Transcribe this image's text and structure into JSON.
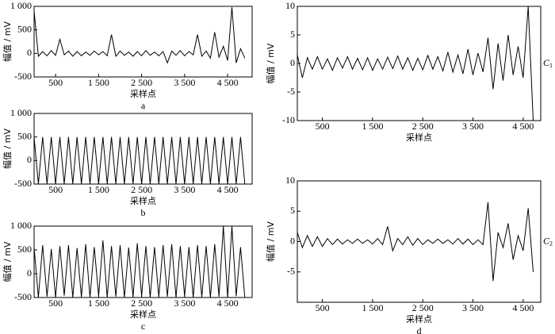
{
  "chart_data": [
    {
      "type": "line",
      "panel_label": "a",
      "xlabel": "采样点",
      "ylabel": "幅值 / mV",
      "color": "#000000",
      "xlim": [
        0,
        5070
      ],
      "ylim": [
        -500,
        1000
      ],
      "xticks": [
        500,
        {
          "value": 1500,
          "label": "1 500"
        },
        {
          "value": 2500,
          "label": "2 500"
        },
        {
          "value": 3500,
          "label": "3 500"
        },
        {
          "value": 4500,
          "label": "4 500"
        }
      ],
      "yticks": [
        -500,
        0,
        500,
        {
          "value": 1000,
          "label": "1 000"
        }
      ],
      "x": [
        0,
        100,
        200,
        300,
        400,
        500,
        600,
        700,
        800,
        900,
        1000,
        1100,
        1200,
        1300,
        1400,
        1500,
        1600,
        1700,
        1800,
        1900,
        2000,
        2100,
        2200,
        2300,
        2400,
        2500,
        2600,
        2700,
        2800,
        2900,
        3000,
        3100,
        3200,
        3300,
        3400,
        3500,
        3600,
        3700,
        3800,
        3900,
        4000,
        4100,
        4200,
        4300,
        4400,
        4500,
        4600,
        4700,
        4800,
        4900
      ],
      "values": [
        900,
        -60,
        40,
        -50,
        60,
        -40,
        300,
        -30,
        50,
        -60,
        40,
        -50,
        30,
        -40,
        50,
        -30,
        40,
        -50,
        400,
        -60,
        50,
        -40,
        30,
        -60,
        40,
        -50,
        60,
        -40,
        30,
        -50,
        40,
        -200,
        50,
        -40,
        60,
        -50,
        40,
        -30,
        400,
        -60,
        50,
        -100,
        450,
        -80,
        150,
        -150,
        980,
        -200,
        100,
        -100
      ]
    },
    {
      "type": "line",
      "panel_label": "b",
      "xlabel": "采样点",
      "ylabel": "幅值 / mV",
      "color": "#000000",
      "xlim": [
        0,
        5070
      ],
      "ylim": [
        -500,
        1000
      ],
      "xticks": [
        500,
        {
          "value": 1500,
          "label": "1 500"
        },
        {
          "value": 2500,
          "label": "2 500"
        },
        {
          "value": 3500,
          "label": "3 500"
        },
        {
          "value": 4500,
          "label": "4 500"
        }
      ],
      "yticks": [
        -500,
        0,
        500,
        {
          "value": 1000,
          "label": "1 000"
        }
      ],
      "x": [
        0,
        100,
        200,
        300,
        400,
        500,
        600,
        700,
        800,
        900,
        1000,
        1100,
        1200,
        1300,
        1400,
        1500,
        1600,
        1700,
        1800,
        1900,
        2000,
        2100,
        2200,
        2300,
        2400,
        2500,
        2600,
        2700,
        2800,
        2900,
        3000,
        3100,
        3200,
        3300,
        3400,
        3500,
        3600,
        3700,
        3800,
        3900,
        4000,
        4100,
        4200,
        4300,
        4400,
        4500,
        4600,
        4700,
        4800,
        4900
      ],
      "values": [
        500,
        -500,
        500,
        -500,
        500,
        -500,
        500,
        -500,
        500,
        -500,
        500,
        -500,
        500,
        -500,
        500,
        -500,
        500,
        -500,
        500,
        -500,
        500,
        -500,
        500,
        -500,
        500,
        -500,
        500,
        -500,
        500,
        -500,
        500,
        -500,
        500,
        -500,
        500,
        -500,
        500,
        -500,
        500,
        -500,
        500,
        -500,
        500,
        -500,
        500,
        -500,
        500,
        -500,
        500,
        -500
      ]
    },
    {
      "type": "line",
      "panel_label": "c",
      "xlabel": "采样点",
      "ylabel": "幅值 / mV",
      "color": "#000000",
      "xlim": [
        0,
        5070
      ],
      "ylim": [
        -500,
        1000
      ],
      "xticks": [
        500,
        {
          "value": 1500,
          "label": "1 500"
        },
        {
          "value": 2500,
          "label": "2 500"
        },
        {
          "value": 3500,
          "label": "3 500"
        },
        {
          "value": 4500,
          "label": "4 500"
        }
      ],
      "yticks": [
        -500,
        0,
        500,
        {
          "value": 1000,
          "label": "1 000"
        }
      ],
      "x": [
        0,
        100,
        200,
        300,
        400,
        500,
        600,
        700,
        800,
        900,
        1000,
        1100,
        1200,
        1300,
        1400,
        1500,
        1600,
        1700,
        1800,
        1900,
        2000,
        2100,
        2200,
        2300,
        2400,
        2500,
        2600,
        2700,
        2800,
        2900,
        3000,
        3100,
        3200,
        3300,
        3400,
        3500,
        3600,
        3700,
        3800,
        3900,
        4000,
        4100,
        4200,
        4300,
        4400,
        4500,
        4600,
        4700,
        4800,
        4900
      ],
      "values": [
        550,
        -500,
        600,
        -480,
        520,
        -500,
        580,
        -460,
        600,
        -500,
        540,
        -490,
        620,
        -500,
        560,
        -470,
        700,
        -500,
        580,
        -480,
        600,
        -500,
        550,
        -490,
        640,
        -470,
        580,
        -500,
        560,
        -490,
        600,
        -480,
        620,
        -500,
        580,
        -470,
        560,
        -500,
        600,
        -490,
        580,
        -500,
        620,
        -480,
        1000,
        -500,
        1000,
        -470,
        560,
        -500
      ]
    },
    {
      "type": "line",
      "panel_label": "",
      "xlabel": "采样点",
      "ylabel": "幅值 / mV",
      "color": "#000000",
      "annotation": {
        "text": "C",
        "sub": "1"
      },
      "xlim": [
        0,
        4850
      ],
      "ylim": [
        -10,
        10
      ],
      "xticks": [
        500,
        {
          "value": 1500,
          "label": "1 500"
        },
        {
          "value": 2500,
          "label": "2 500"
        },
        {
          "value": 3500,
          "label": "3 500"
        },
        {
          "value": 4500,
          "label": "4 500"
        }
      ],
      "yticks": [
        -10,
        -5,
        0,
        5,
        10
      ],
      "x": [
        0,
        100,
        200,
        300,
        400,
        500,
        600,
        700,
        800,
        900,
        1000,
        1100,
        1200,
        1300,
        1400,
        1500,
        1600,
        1700,
        1800,
        1900,
        2000,
        2100,
        2200,
        2300,
        2400,
        2500,
        2600,
        2700,
        2800,
        2900,
        3000,
        3100,
        3200,
        3300,
        3400,
        3500,
        3600,
        3700,
        3800,
        3900,
        4000,
        4100,
        4200,
        4300,
        4400,
        4500,
        4600,
        4700
      ],
      "values": [
        1.5,
        -2.5,
        1,
        -1,
        1.2,
        -1,
        0.8,
        -1.2,
        1,
        -0.8,
        1.2,
        -1,
        0.9,
        -1.1,
        1,
        -1.2,
        0.8,
        -1,
        1.1,
        -0.9,
        1.3,
        -1,
        1,
        -1.2,
        0.9,
        -1.1,
        1.4,
        -1,
        1.2,
        -1.3,
        2,
        -1.5,
        1.5,
        -1.8,
        2.5,
        -2,
        1.8,
        -1.5,
        4.5,
        -4.5,
        3.5,
        -3,
        5,
        -2,
        3,
        -2.5,
        10,
        -10
      ]
    },
    {
      "type": "line",
      "panel_label": "d",
      "xlabel": "采样点",
      "ylabel": "幅值 / mV",
      "color": "#000000",
      "annotation": {
        "text": "C",
        "sub": "2"
      },
      "xlim": [
        0,
        4850
      ],
      "ylim": [
        -10,
        10
      ],
      "xticks": [
        500,
        {
          "value": 1500,
          "label": "1 500"
        },
        {
          "value": 2500,
          "label": "2 500"
        },
        {
          "value": 3500,
          "label": "3 500"
        },
        {
          "value": 4500,
          "label": "4 500"
        }
      ],
      "yticks": [
        -5,
        0,
        5,
        10
      ],
      "x": [
        0,
        100,
        200,
        300,
        400,
        500,
        600,
        700,
        800,
        900,
        1000,
        1100,
        1200,
        1300,
        1400,
        1500,
        1600,
        1700,
        1800,
        1900,
        2000,
        2100,
        2200,
        2300,
        2400,
        2500,
        2600,
        2700,
        2800,
        2900,
        3000,
        3100,
        3200,
        3300,
        3400,
        3500,
        3600,
        3700,
        3800,
        3900,
        4000,
        4100,
        4200,
        4300,
        4400,
        4500,
        4600,
        4700
      ],
      "values": [
        1.5,
        -1,
        1,
        -0.8,
        0.8,
        -0.8,
        0.5,
        -0.5,
        0.4,
        -0.4,
        0.3,
        -0.3,
        0.4,
        -0.3,
        0.3,
        -0.4,
        0.5,
        -0.5,
        2.5,
        -1.5,
        0.5,
        -0.5,
        0.8,
        -0.6,
        0.5,
        -0.5,
        0.3,
        -0.3,
        0.4,
        -0.3,
        0.3,
        -0.4,
        0.5,
        -0.4,
        0.4,
        -0.5,
        0.3,
        -0.5,
        6.5,
        -6.5,
        1.5,
        -1,
        3,
        -3,
        1,
        -1.5,
        5.5,
        -5
      ]
    }
  ]
}
